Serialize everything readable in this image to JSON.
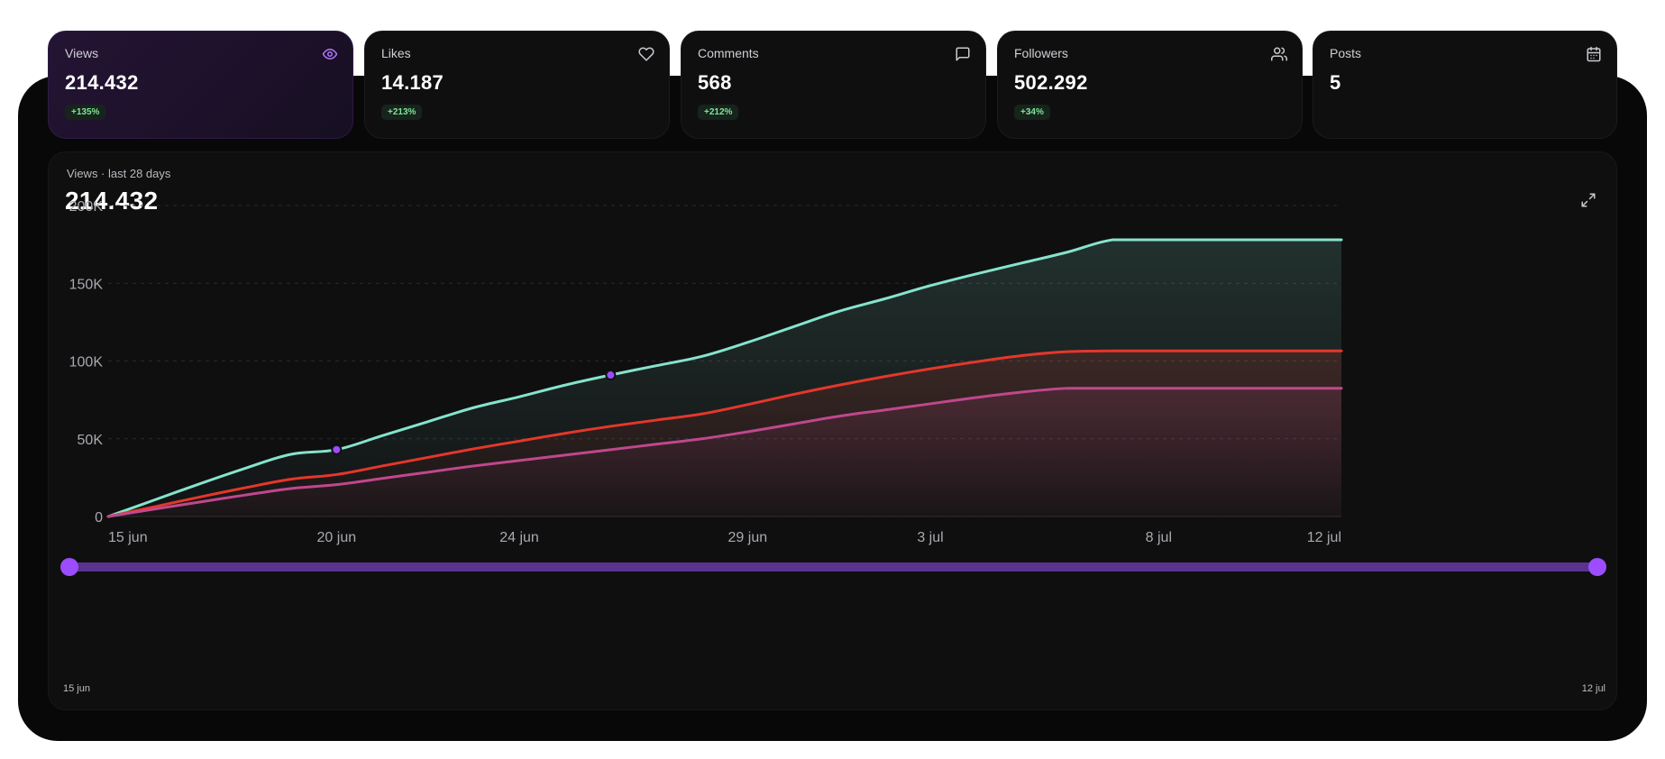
{
  "cards": [
    {
      "label": "Views",
      "value": "214.432",
      "badge": "+135%",
      "icon": "eye-icon",
      "active": true
    },
    {
      "label": "Likes",
      "value": "14.187",
      "badge": "+213%",
      "icon": "heart-icon",
      "active": false
    },
    {
      "label": "Comments",
      "value": "568",
      "badge": "+212%",
      "icon": "message-square-icon",
      "active": false
    },
    {
      "label": "Followers",
      "value": "502.292",
      "badge": "+34%",
      "icon": "users-icon",
      "active": false
    },
    {
      "label": "Posts",
      "value": "5",
      "badge": "",
      "icon": "calendar-icon",
      "active": false
    }
  ],
  "chart": {
    "subtitle": "Views · last 28 days",
    "total": "214.432",
    "expand_icon": "expand-icon"
  },
  "range": {
    "start_label": "15 jun",
    "end_label": "12 jul",
    "start_fraction": 0,
    "end_fraction": 1
  },
  "colors": {
    "accent": "#9b4dff",
    "series_teal": "#86e3cc",
    "series_red": "#e4372c",
    "series_magenta": "#c0478d",
    "badge_text": "#7fe39a"
  },
  "chart_data": {
    "type": "area",
    "x": [
      "15 jun",
      "16 jun",
      "17 jun",
      "18 jun",
      "19 jun",
      "20 jun",
      "21 jun",
      "22 jun",
      "23 jun",
      "24 jun",
      "25 jun",
      "26 jun",
      "27 jun",
      "28 jun",
      "29 jun",
      "30 jun",
      "1 jul",
      "2 jul",
      "3 jul",
      "4 jul",
      "5 jul",
      "6 jul",
      "7 jul",
      "8 jul",
      "9 jul",
      "10 jul",
      "11 jul",
      "12 jul"
    ],
    "x_ticks": [
      "15 jun",
      "20 jun",
      "24 jun",
      "29 jun",
      "3 jul",
      "8 jul",
      "12 jul"
    ],
    "y_ticks": [
      "0",
      "50K",
      "100K",
      "150K",
      "200K"
    ],
    "ylim": [
      0,
      200000
    ],
    "grid": true,
    "series": [
      {
        "color": "#86e3cc",
        "values": [
          0,
          10500,
          21000,
          31000,
          40000,
          43000,
          52000,
          61000,
          70000,
          77000,
          84500,
          91000,
          97000,
          103000,
          112000,
          122000,
          132000,
          140000,
          148500,
          156000,
          163000,
          170000,
          178000,
          178000,
          178000,
          178000,
          178000,
          178000
        ]
      },
      {
        "color": "#e4372c",
        "values": [
          0,
          6200,
          12500,
          18500,
          24000,
          27000,
          32500,
          38000,
          43500,
          48500,
          53500,
          58000,
          62000,
          66000,
          72000,
          78500,
          84500,
          90000,
          95000,
          99500,
          103500,
          106000,
          106500,
          106500,
          106500,
          106500,
          106500,
          106500
        ]
      },
      {
        "color": "#c0478d",
        "values": [
          0,
          4700,
          9300,
          13800,
          18000,
          20500,
          24500,
          28500,
          32500,
          36000,
          39500,
          43000,
          46500,
          50000,
          54500,
          59500,
          64500,
          68500,
          72500,
          76500,
          80000,
          82500,
          82500,
          82500,
          82500,
          82500,
          82500,
          82500
        ]
      }
    ],
    "highlighted_points": [
      {
        "series": 0,
        "x": "20 jun"
      },
      {
        "series": 0,
        "x": "26 jun"
      }
    ]
  }
}
